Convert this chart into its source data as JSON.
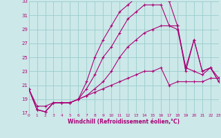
{
  "xlabel": "Windchill (Refroidissement éolien,°C)",
  "bg_color": "#cce8e8",
  "grid_color": "#99cccc",
  "line_color": "#aa0077",
  "xmin": 0,
  "xmax": 23,
  "ymin": 17,
  "ymax": 33,
  "yticks": [
    17,
    19,
    21,
    23,
    25,
    27,
    29,
    31,
    33
  ],
  "xticks": [
    0,
    1,
    2,
    3,
    4,
    5,
    6,
    7,
    8,
    9,
    10,
    11,
    12,
    13,
    14,
    15,
    16,
    17,
    18,
    19,
    20,
    21,
    22,
    23
  ],
  "series": [
    [
      20.5,
      17.5,
      17.2,
      18.5,
      18.5,
      18.5,
      19.0,
      21.5,
      25.0,
      27.5,
      29.5,
      31.5,
      32.5,
      33.5,
      33.5,
      33.5,
      33.5,
      33.0,
      29.5,
      23.0,
      27.5,
      23.0,
      23.5,
      21.5
    ],
    [
      20.5,
      17.5,
      17.2,
      18.5,
      18.5,
      18.5,
      19.0,
      20.5,
      22.5,
      25.0,
      26.5,
      28.5,
      30.5,
      31.5,
      32.5,
      32.5,
      32.5,
      29.5,
      29.0,
      23.5,
      23.0,
      22.5,
      23.5,
      22.0
    ],
    [
      20.5,
      17.5,
      17.2,
      18.5,
      18.5,
      18.5,
      19.0,
      19.5,
      20.5,
      21.5,
      23.0,
      25.0,
      26.5,
      27.5,
      28.5,
      29.0,
      29.5,
      29.5,
      29.5,
      23.5,
      27.5,
      23.0,
      23.5,
      21.5
    ],
    [
      20.5,
      18.0,
      18.0,
      18.5,
      18.5,
      18.5,
      19.0,
      19.5,
      20.0,
      20.5,
      21.0,
      21.5,
      22.0,
      22.5,
      23.0,
      23.0,
      23.5,
      21.0,
      21.5,
      21.5,
      21.5,
      21.5,
      22.0,
      22.0
    ]
  ]
}
